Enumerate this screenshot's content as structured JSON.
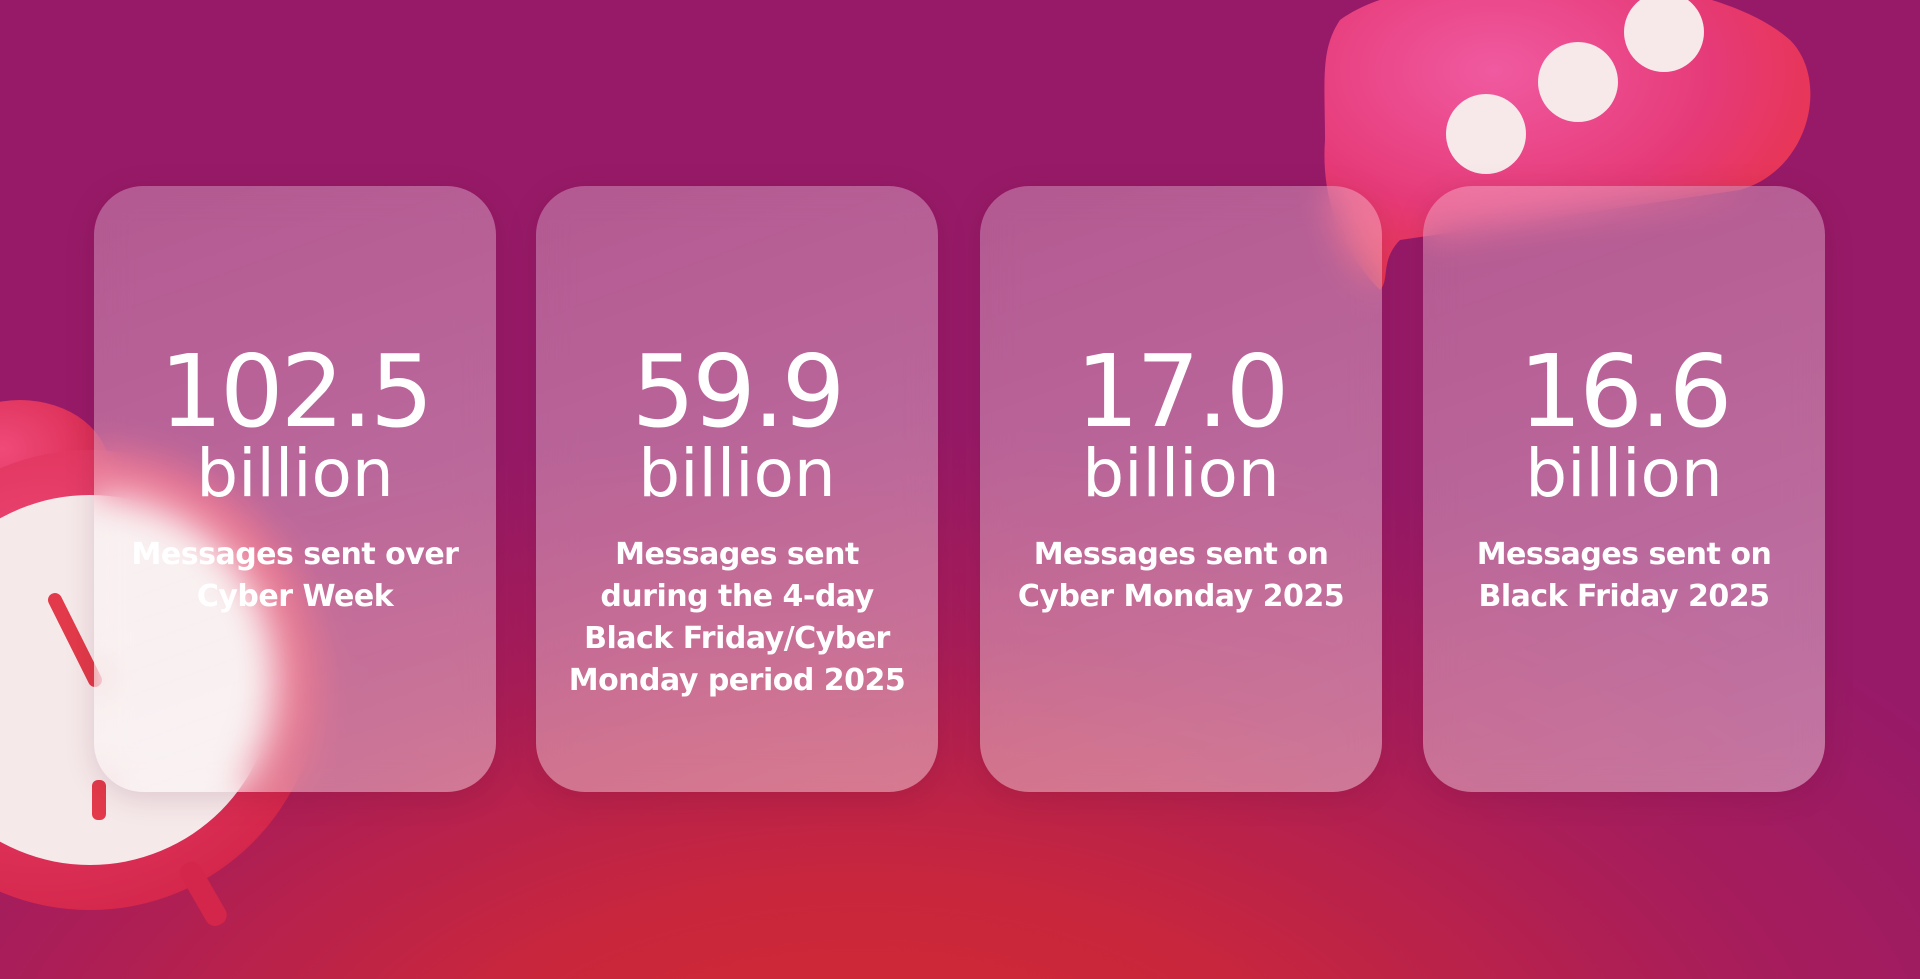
{
  "cards": [
    {
      "value": "102.5",
      "unit": "billion",
      "label": "Messages sent over Cyber Week"
    },
    {
      "value": "59.9",
      "unit": "billion",
      "label": "Messages sent during the 4-day Black Friday/Cyber Monday period 2025"
    },
    {
      "value": "17.0",
      "unit": "billion",
      "label": "Messages sent on Cyber Monday 2025"
    },
    {
      "value": "16.6",
      "unit": "billion",
      "label": "Messages sent on Black Friday 2025"
    }
  ]
}
